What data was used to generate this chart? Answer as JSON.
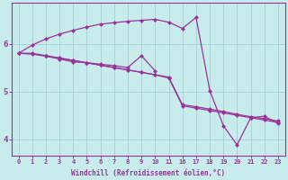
{
  "bg_color": "#c8ecec",
  "line_color": "#993399",
  "grid_color": "#aad4d4",
  "xlabel": "Windchill (Refroidissement éolien,°C)",
  "line1_x": [
    0,
    1,
    2,
    3,
    4,
    5,
    6,
    7,
    8,
    9,
    10,
    11,
    12,
    13,
    14,
    15,
    16,
    17,
    18,
    19
  ],
  "line1_y": [
    5.8,
    5.97,
    6.1,
    6.2,
    6.28,
    6.35,
    6.41,
    6.44,
    6.47,
    6.49,
    6.51,
    6.45,
    6.32,
    6.55,
    5.02,
    4.28,
    3.88,
    4.45,
    4.48,
    4.33
  ],
  "line2_x": [
    0,
    1,
    2,
    3,
    4,
    5,
    6,
    7,
    8,
    9,
    10,
    11,
    12,
    13,
    14,
    15,
    16,
    17,
    18,
    19
  ],
  "line2_y": [
    5.8,
    5.8,
    5.75,
    5.7,
    5.65,
    5.6,
    5.55,
    5.5,
    5.45,
    5.4,
    5.35,
    5.3,
    4.72,
    4.68,
    4.63,
    4.58,
    4.52,
    4.47,
    4.43,
    4.38
  ],
  "line3_x": [
    0,
    1,
    2,
    3,
    4,
    5,
    6,
    7,
    8,
    9,
    10,
    11,
    12,
    13,
    14,
    15,
    16,
    17,
    18,
    19
  ],
  "line3_y": [
    5.8,
    5.78,
    5.74,
    5.7,
    5.65,
    5.6,
    5.55,
    5.5,
    5.45,
    5.4,
    5.35,
    5.28,
    4.7,
    4.65,
    4.6,
    4.55,
    4.5,
    4.45,
    4.4,
    4.35
  ],
  "line4_x": [
    2,
    3,
    4,
    5,
    6,
    7,
    8,
    9,
    10
  ],
  "line4_y": [
    5.74,
    5.68,
    5.62,
    5.6,
    5.57,
    5.54,
    5.5,
    5.75,
    5.43
  ],
  "xtick_positions": [
    0,
    1,
    2,
    3,
    4,
    5,
    6,
    7,
    8,
    9,
    10,
    11,
    12,
    13,
    14,
    15,
    16,
    17,
    18,
    19
  ],
  "xtick_labels": [
    "0",
    "1",
    "2",
    "3",
    "4",
    "5",
    "6",
    "7",
    "8",
    "9",
    "10",
    "11",
    "16",
    "17",
    "18",
    "19",
    "20",
    "21",
    "22",
    "23"
  ],
  "yticks": [
    4,
    5,
    6
  ],
  "ylim": [
    3.65,
    6.85
  ],
  "xlim": [
    -0.5,
    19.5
  ]
}
